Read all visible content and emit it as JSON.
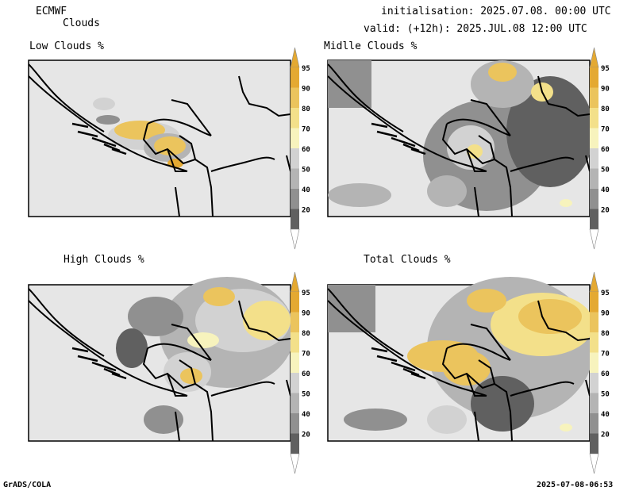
{
  "header": {
    "model": "ECMWF",
    "product": "Clouds",
    "init_line": "initialisation: 2025.07.08. 00:00 UTC",
    "valid_line": "valid: (+12h): 2025.JUL.08 12:00 UTC"
  },
  "panels": [
    {
      "id": "low",
      "title": "Low Clouds %"
    },
    {
      "id": "mid",
      "title": "Midlle Clouds %"
    },
    {
      "id": "high",
      "title": "High Clouds %"
    },
    {
      "id": "total",
      "title": "Total Clouds %"
    }
  ],
  "legend": {
    "levels": [
      "20",
      "40",
      "50",
      "60",
      "70",
      "80",
      "90",
      "95"
    ],
    "colors": [
      "#606060",
      "#909090",
      "#b4b4b4",
      "#d2d2d2",
      "#f7f3bd",
      "#f3e08a",
      "#ebc45d",
      "#e4a932"
    ]
  },
  "footer": {
    "left": "GrADS/COLA",
    "right": "2025-07-08-06:53"
  },
  "colors": {
    "background_map": "#e6e6e6",
    "border": "#000000"
  }
}
